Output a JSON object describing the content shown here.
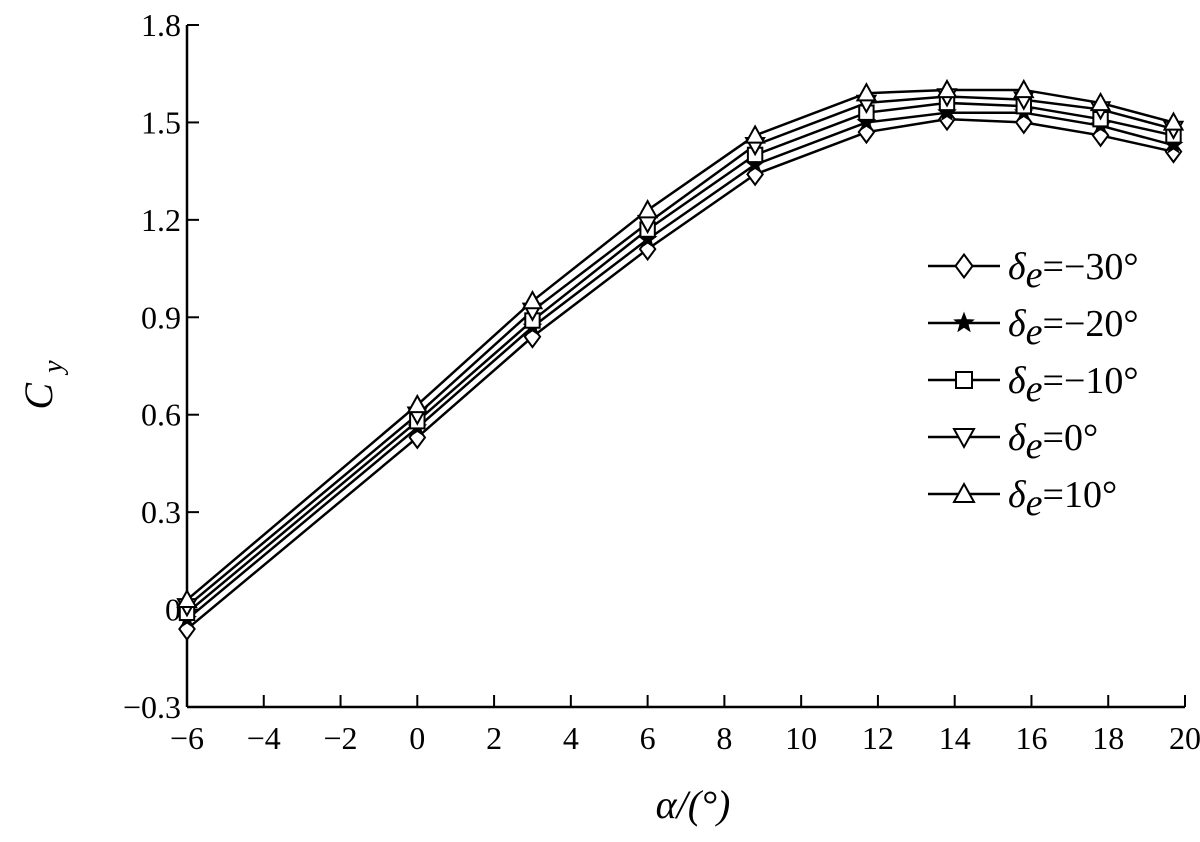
{
  "chart_data": {
    "type": "line",
    "title": "",
    "xlabel": "α/(°)",
    "ylabel": "Cy",
    "ylabel_main": "C",
    "ylabel_sub": "y",
    "xlim": [
      -6,
      20
    ],
    "ylim": [
      -0.3,
      1.8
    ],
    "xticks": [
      -6,
      -4,
      -2,
      0,
      2,
      4,
      6,
      8,
      10,
      12,
      14,
      16,
      18,
      20
    ],
    "xtick_labels": [
      "−6",
      "−4",
      "−2",
      "0",
      "2",
      "4",
      "6",
      "8",
      "10",
      "12",
      "14",
      "16",
      "18",
      "20"
    ],
    "yticks": [
      -0.3,
      0,
      0.3,
      0.6,
      0.9,
      1.2,
      1.5,
      1.8
    ],
    "ytick_labels": [
      "−0.3",
      "0",
      "0.3",
      "0.6",
      "0.9",
      "1.2",
      "1.5",
      "1.8"
    ],
    "grid": false,
    "legend_position": "right",
    "line_color": "#000000",
    "x": [
      -6,
      0,
      3,
      6,
      8.8,
      11.7,
      13.8,
      15.8,
      17.8,
      19.7
    ],
    "series": [
      {
        "name": "δe=−30°",
        "symbol": "δ",
        "subscript": "e",
        "value_text": "=−30°",
        "marker": "diamond",
        "values": [
          -0.06,
          0.53,
          0.84,
          1.11,
          1.34,
          1.47,
          1.51,
          1.5,
          1.46,
          1.41
        ]
      },
      {
        "name": "δe=−20°",
        "symbol": "δ",
        "subscript": "e",
        "value_text": "=−20°",
        "marker": "star",
        "values": [
          -0.03,
          0.56,
          0.87,
          1.14,
          1.37,
          1.5,
          1.53,
          1.53,
          1.49,
          1.43
        ]
      },
      {
        "name": "δe=−10°",
        "symbol": "δ",
        "subscript": "e",
        "value_text": "=−10°",
        "marker": "square",
        "values": [
          -0.01,
          0.58,
          0.89,
          1.17,
          1.4,
          1.53,
          1.56,
          1.55,
          1.51,
          1.46
        ]
      },
      {
        "name": "δe=0°",
        "symbol": "δ",
        "subscript": "e",
        "value_text": "=0°",
        "marker": "triangle-down",
        "values": [
          0.01,
          0.6,
          0.92,
          1.19,
          1.43,
          1.56,
          1.58,
          1.57,
          1.54,
          1.48
        ]
      },
      {
        "name": "δe=10°",
        "symbol": "δ",
        "subscript": "e",
        "value_text": "=10°",
        "marker": "triangle-up",
        "values": [
          0.03,
          0.63,
          0.95,
          1.23,
          1.46,
          1.59,
          1.6,
          1.6,
          1.56,
          1.5
        ]
      }
    ]
  }
}
